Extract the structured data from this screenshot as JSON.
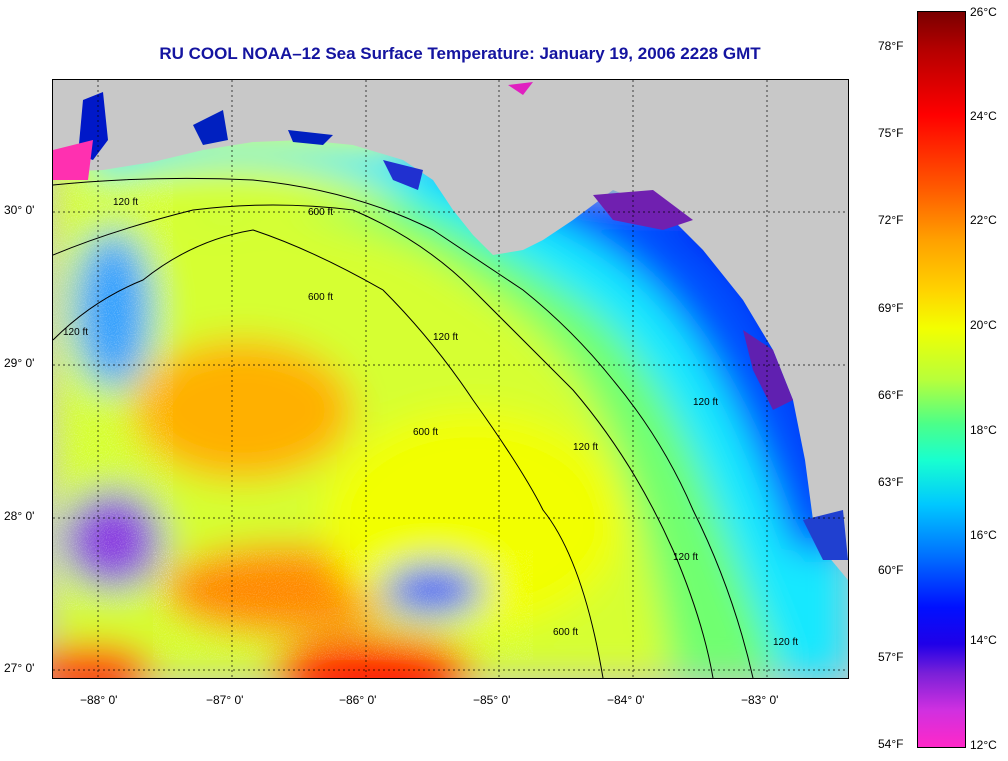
{
  "title": "RU COOL  NOAA–12  Sea Surface Temperature:  January 19, 2006 2228 GMT",
  "map": {
    "lon_labels": [
      "−88° 0'",
      "−87° 0'",
      "−86° 0'",
      "−85° 0'",
      "−84° 0'",
      "−83° 0'"
    ],
    "lat_labels": [
      "30° 0'",
      "29° 0'",
      "28° 0'",
      "27° 0'"
    ],
    "contour_labels": [
      "120 ft",
      "600 ft",
      "120 ft",
      "120 ft",
      "600 ft",
      "120 ft",
      "120 ft",
      "600 ft",
      "120 ft",
      "600 ft",
      "120 ft"
    ],
    "land_color": "#c8c8c8",
    "grid": true
  },
  "colorbar": {
    "fahrenheit_labels": [
      "78°F",
      "75°F",
      "72°F",
      "69°F",
      "66°F",
      "63°F",
      "60°F",
      "57°F",
      "54°F"
    ],
    "celsius_labels": [
      "26°C",
      "24°C",
      "22°C",
      "20°C",
      "18°C",
      "16°C",
      "14°C",
      "12°C"
    ],
    "range_c": [
      12,
      26
    ]
  }
}
